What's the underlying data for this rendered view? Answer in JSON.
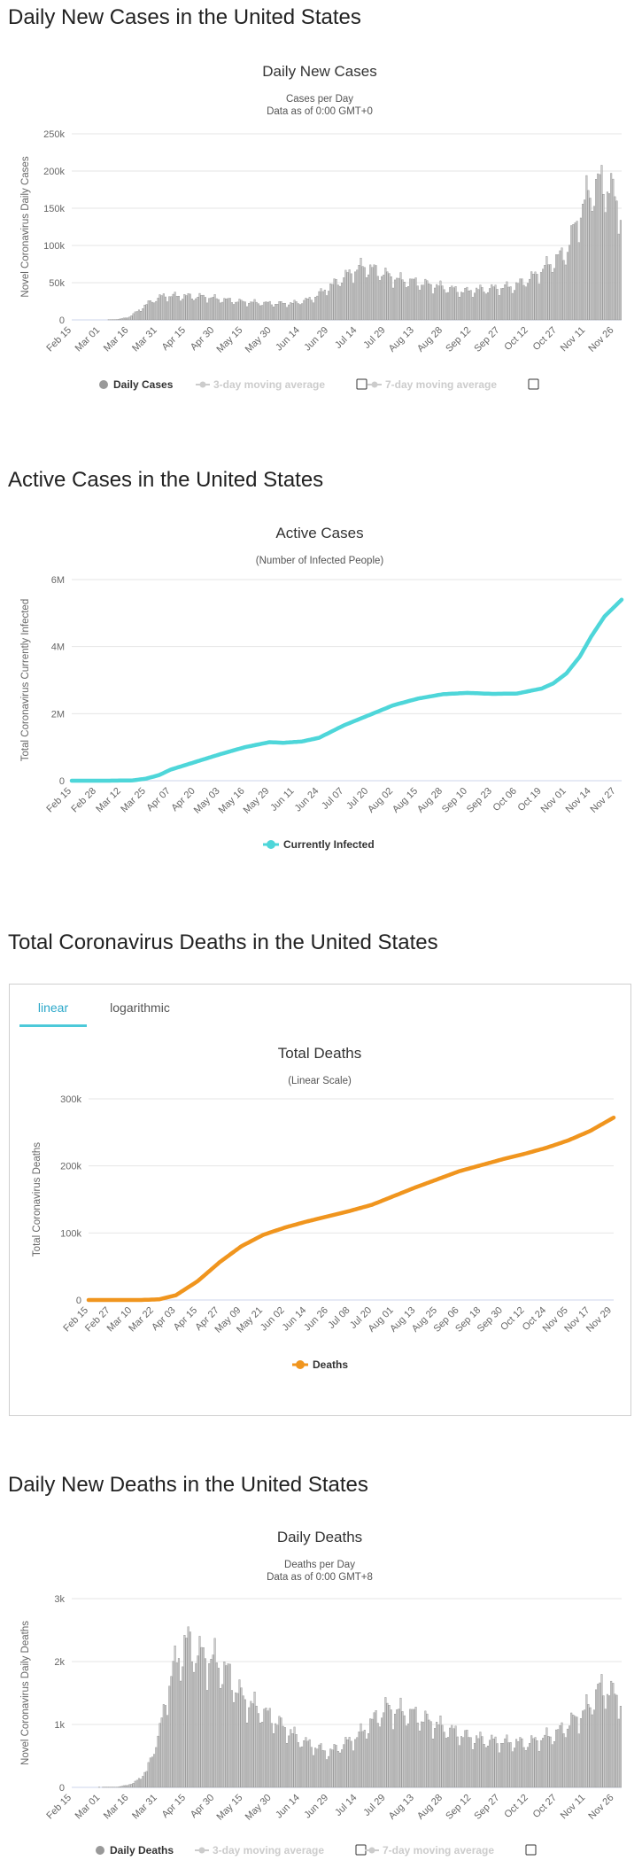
{
  "sections": {
    "daily_cases": "Daily New Cases in the United States",
    "active_cases": "Active Cases in the United States",
    "total_deaths": "Total Coronavirus Deaths in the United States",
    "daily_deaths": "Daily New Deaths in the United States"
  },
  "tabs": {
    "linear": "linear",
    "log": "logarithmic"
  },
  "chart_data": [
    {
      "id": "daily_cases",
      "type": "bar",
      "title": "Daily New Cases",
      "subtitle": [
        "Cases per Day",
        "Data as of 0:00 GMT+0"
      ],
      "ylabel": "Novel Coronavirus Daily Cases",
      "ylim": [
        0,
        250000
      ],
      "yticks": [
        [
          0,
          "0"
        ],
        [
          50000,
          "50k"
        ],
        [
          100000,
          "100k"
        ],
        [
          150000,
          "150k"
        ],
        [
          200000,
          "200k"
        ],
        [
          250000,
          "250k"
        ]
      ],
      "x_range": [
        "2020-02-15",
        "2020-11-30"
      ],
      "xticks": [
        "Feb 15",
        "Mar 01",
        "Mar 16",
        "Mar 31",
        "Apr 15",
        "Apr 30",
        "May 15",
        "May 30",
        "Jun 14",
        "Jun 29",
        "Jul 14",
        "Jul 29",
        "Aug 13",
        "Aug 28",
        "Sep 12",
        "Sep 27",
        "Oct 12",
        "Oct 27",
        "Nov 11",
        "Nov 26"
      ],
      "series": [
        {
          "name": "Daily Cases",
          "anchors": [
            [
              "2020-02-15",
              0
            ],
            [
              "2020-03-01",
              10
            ],
            [
              "2020-03-10",
              600
            ],
            [
              "2020-03-16",
              4000
            ],
            [
              "2020-03-22",
              15000
            ],
            [
              "2020-03-28",
              26000
            ],
            [
              "2020-04-03",
              32000
            ],
            [
              "2020-04-10",
              32000
            ],
            [
              "2020-04-24",
              31000
            ],
            [
              "2020-05-05",
              27000
            ],
            [
              "2020-05-15",
              24000
            ],
            [
              "2020-05-30",
              22000
            ],
            [
              "2020-06-10",
              22000
            ],
            [
              "2020-06-20",
              28000
            ],
            [
              "2020-06-30",
              45000
            ],
            [
              "2020-07-10",
              62000
            ],
            [
              "2020-07-17",
              72000
            ],
            [
              "2020-07-25",
              65000
            ],
            [
              "2020-08-05",
              54000
            ],
            [
              "2020-08-15",
              50000
            ],
            [
              "2020-08-28",
              44000
            ],
            [
              "2020-09-08",
              38000
            ],
            [
              "2020-09-15",
              40000
            ],
            [
              "2020-09-27",
              43000
            ],
            [
              "2020-10-05",
              45000
            ],
            [
              "2020-10-15",
              58000
            ],
            [
              "2020-10-25",
              78000
            ],
            [
              "2020-11-01",
              90000
            ],
            [
              "2020-11-06",
              125000
            ],
            [
              "2020-11-13",
              170000
            ],
            [
              "2020-11-20",
              185000
            ],
            [
              "2020-11-25",
              175000
            ],
            [
              "2020-11-30",
              145000
            ]
          ]
        }
      ],
      "legend": [
        "Daily Cases",
        "3-day moving average",
        "7-day moving average"
      ]
    },
    {
      "id": "active_cases",
      "type": "line",
      "title": "Active Cases",
      "subtitle": [
        "(Number of Infected People)"
      ],
      "ylabel": "Total Coronavirus Currently Infected",
      "ylim": [
        0,
        6000000
      ],
      "yticks": [
        [
          0,
          "0"
        ],
        [
          2000000,
          "2M"
        ],
        [
          4000000,
          "4M"
        ],
        [
          6000000,
          "6M"
        ]
      ],
      "x_range": [
        "2020-02-15",
        "2020-11-30"
      ],
      "xticks": [
        "Feb 15",
        "Feb 28",
        "Mar 12",
        "Mar 25",
        "Apr 07",
        "Apr 20",
        "May 03",
        "May 16",
        "May 29",
        "Jun 11",
        "Jun 24",
        "Jul 07",
        "Jul 20",
        "Aug 02",
        "Aug 15",
        "Aug 28",
        "Sep 10",
        "Sep 23",
        "Oct 06",
        "Oct 19",
        "Nov 01",
        "Nov 14",
        "Nov 27"
      ],
      "series": [
        {
          "name": "Currently Infected",
          "color": "#4ed6d9",
          "anchors": [
            [
              "2020-02-15",
              0
            ],
            [
              "2020-03-05",
              100
            ],
            [
              "2020-03-18",
              10000
            ],
            [
              "2020-03-25",
              60000
            ],
            [
              "2020-04-01",
              170000
            ],
            [
              "2020-04-07",
              330000
            ],
            [
              "2020-04-20",
              560000
            ],
            [
              "2020-05-03",
              790000
            ],
            [
              "2020-05-16",
              1000000
            ],
            [
              "2020-05-29",
              1150000
            ],
            [
              "2020-06-05",
              1130000
            ],
            [
              "2020-06-15",
              1170000
            ],
            [
              "2020-06-24",
              1280000
            ],
            [
              "2020-07-07",
              1650000
            ],
            [
              "2020-07-20",
              1950000
            ],
            [
              "2020-08-02",
              2250000
            ],
            [
              "2020-08-15",
              2450000
            ],
            [
              "2020-08-28",
              2580000
            ],
            [
              "2020-09-10",
              2620000
            ],
            [
              "2020-09-23",
              2590000
            ],
            [
              "2020-10-06",
              2600000
            ],
            [
              "2020-10-19",
              2750000
            ],
            [
              "2020-10-25",
              2900000
            ],
            [
              "2020-11-01",
              3200000
            ],
            [
              "2020-11-08",
              3700000
            ],
            [
              "2020-11-14",
              4300000
            ],
            [
              "2020-11-21",
              4900000
            ],
            [
              "2020-11-30",
              5400000
            ]
          ]
        }
      ],
      "legend": [
        "Currently Infected"
      ]
    },
    {
      "id": "total_deaths",
      "type": "line",
      "title": "Total Deaths",
      "subtitle": [
        "(Linear Scale)"
      ],
      "ylabel": "Total Coronavirus Deaths",
      "ylim": [
        0,
        300000
      ],
      "yticks": [
        [
          0,
          "0"
        ],
        [
          100000,
          "100k"
        ],
        [
          200000,
          "200k"
        ],
        [
          300000,
          "300k"
        ]
      ],
      "x_range": [
        "2020-02-15",
        "2020-11-30"
      ],
      "xticks": [
        "Feb 15",
        "Feb 27",
        "Mar 10",
        "Mar 22",
        "Apr 03",
        "Apr 15",
        "Apr 27",
        "May 09",
        "May 21",
        "Jun 02",
        "Jun 14",
        "Jun 26",
        "Jul 08",
        "Jul 20",
        "Aug 01",
        "Aug 13",
        "Aug 25",
        "Sep 06",
        "Sep 18",
        "Sep 30",
        "Oct 12",
        "Oct 24",
        "Nov 05",
        "Nov 17",
        "Nov 29"
      ],
      "series": [
        {
          "name": "Deaths",
          "color": "#f0951e",
          "anchors": [
            [
              "2020-02-15",
              0
            ],
            [
              "2020-03-15",
              60
            ],
            [
              "2020-03-25",
              1000
            ],
            [
              "2020-04-03",
              7000
            ],
            [
              "2020-04-15",
              28000
            ],
            [
              "2020-04-27",
              56000
            ],
            [
              "2020-05-09",
              80000
            ],
            [
              "2020-05-21",
              97000
            ],
            [
              "2020-06-02",
              108000
            ],
            [
              "2020-06-14",
              117000
            ],
            [
              "2020-06-26",
              125000
            ],
            [
              "2020-07-08",
              133000
            ],
            [
              "2020-07-20",
              142000
            ],
            [
              "2020-08-01",
              155000
            ],
            [
              "2020-08-13",
              168000
            ],
            [
              "2020-08-25",
              180000
            ],
            [
              "2020-09-06",
              192000
            ],
            [
              "2020-09-18",
              201000
            ],
            [
              "2020-09-30",
              210000
            ],
            [
              "2020-10-12",
              218000
            ],
            [
              "2020-10-24",
              227000
            ],
            [
              "2020-11-05",
              238000
            ],
            [
              "2020-11-17",
              252000
            ],
            [
              "2020-11-30",
              272000
            ]
          ]
        }
      ],
      "legend": [
        "Deaths"
      ]
    },
    {
      "id": "daily_deaths",
      "type": "bar",
      "title": "Daily Deaths",
      "subtitle": [
        "Deaths per Day",
        "Data as of 0:00 GMT+8"
      ],
      "ylabel": "Novel Coronavirus Daily Deaths",
      "ylim": [
        0,
        3000
      ],
      "yticks": [
        [
          0,
          "0"
        ],
        [
          1000,
          "1k"
        ],
        [
          2000,
          "2k"
        ],
        [
          3000,
          "3k"
        ]
      ],
      "x_range": [
        "2020-02-15",
        "2020-11-30"
      ],
      "xticks": [
        "Feb 15",
        "Mar 01",
        "Mar 16",
        "Mar 31",
        "Apr 15",
        "Apr 30",
        "May 15",
        "May 30",
        "Jun 14",
        "Jun 29",
        "Jul 14",
        "Jul 29",
        "Aug 13",
        "Aug 28",
        "Sep 12",
        "Sep 27",
        "Oct 12",
        "Oct 27",
        "Nov 11",
        "Nov 26"
      ],
      "series": [
        {
          "name": "Daily Deaths",
          "anchors": [
            [
              "2020-02-15",
              0
            ],
            [
              "2020-03-10",
              5
            ],
            [
              "2020-03-18",
              60
            ],
            [
              "2020-03-25",
              250
            ],
            [
              "2020-04-01",
              900
            ],
            [
              "2020-04-07",
              1800
            ],
            [
              "2020-04-15",
              2300
            ],
            [
              "2020-04-22",
              2100
            ],
            [
              "2020-04-30",
              2000
            ],
            [
              "2020-05-07",
              1800
            ],
            [
              "2020-05-15",
              1400
            ],
            [
              "2020-05-30",
              1100
            ],
            [
              "2020-06-14",
              750
            ],
            [
              "2020-06-29",
              550
            ],
            [
              "2020-07-14",
              800
            ],
            [
              "2020-07-29",
              1250
            ],
            [
              "2020-08-13",
              1150
            ],
            [
              "2020-08-28",
              950
            ],
            [
              "2020-09-12",
              780
            ],
            [
              "2020-09-27",
              720
            ],
            [
              "2020-10-12",
              700
            ],
            [
              "2020-10-27",
              850
            ],
            [
              "2020-11-11",
              1200
            ],
            [
              "2020-11-20",
              1600
            ],
            [
              "2020-11-30",
              1400
            ]
          ]
        }
      ],
      "legend": [
        "Daily Deaths",
        "3-day moving average",
        "7-day moving average"
      ]
    }
  ]
}
